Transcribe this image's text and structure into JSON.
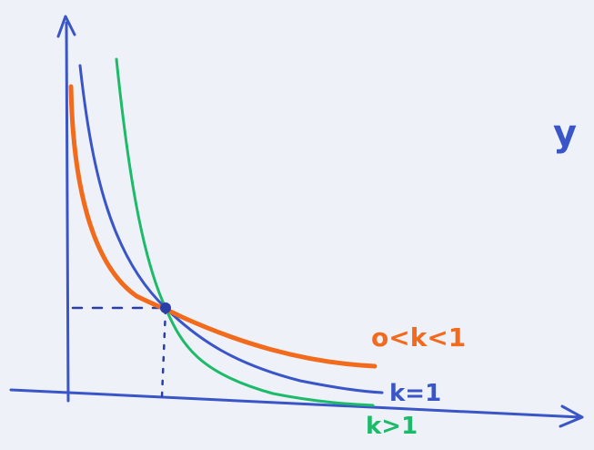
{
  "curve_labels": {
    "orange": "o<k<1",
    "blue": "k=1",
    "green": "k>1"
  },
  "side_text": "y"
}
